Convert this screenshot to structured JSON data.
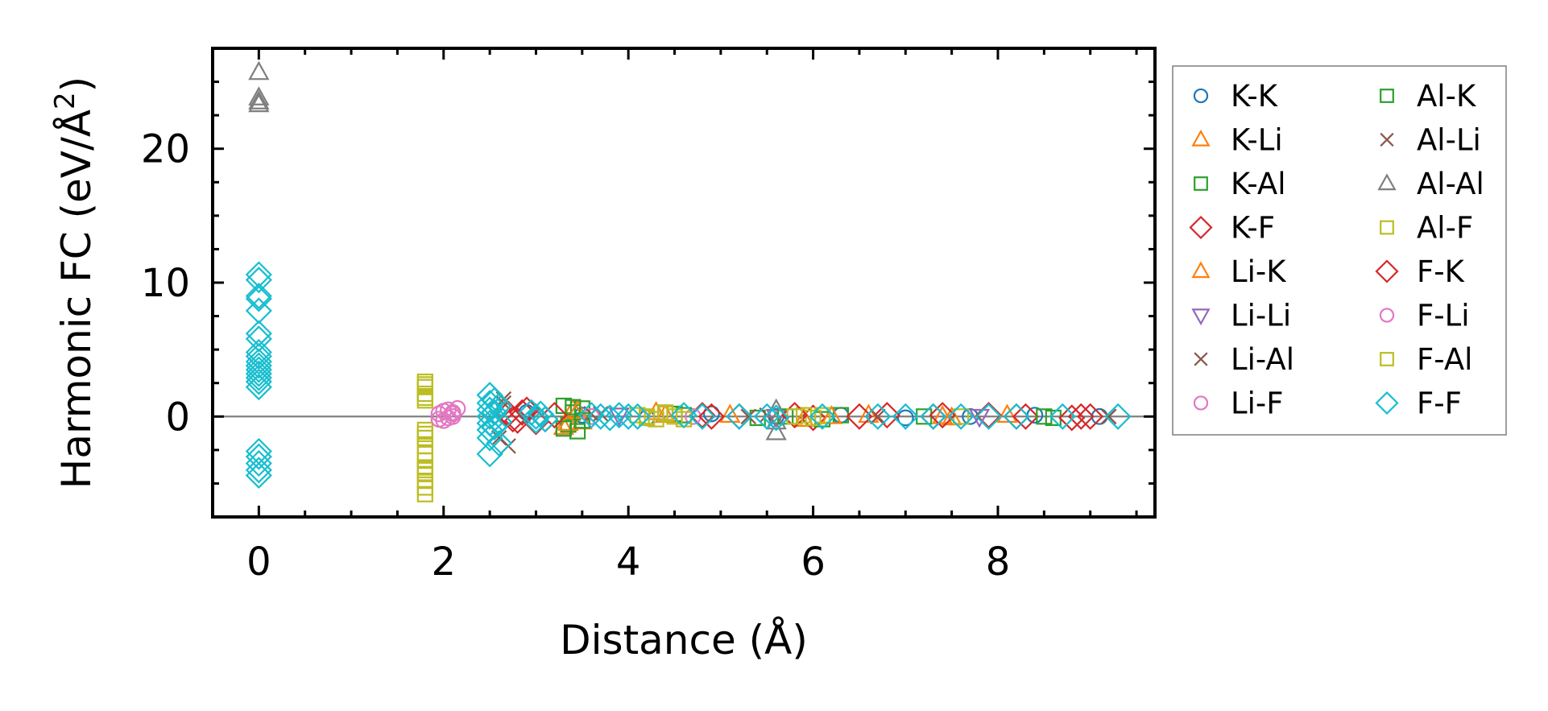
{
  "chart_data": {
    "type": "scatter",
    "xlabel": "Distance (Å)",
    "ylabel": "Harmonic FC (eV/Å²)",
    "ylabel_parts": {
      "main": "Harmonic FC (eV/Å",
      "superscript": "2",
      "close": ")"
    },
    "xlim": [
      -0.5,
      9.7
    ],
    "ylim": [
      -7.5,
      27.5
    ],
    "x_ticks": [
      0,
      2,
      4,
      6,
      8
    ],
    "x_tick_labels": [
      "0",
      "2",
      "4",
      "6",
      "8"
    ],
    "y_ticks": [
      0,
      10,
      20
    ],
    "y_tick_labels": [
      "0",
      "10",
      "20"
    ],
    "reference_line": {
      "y": 0,
      "color": "#808080"
    },
    "grid": false,
    "legend": {
      "placement": "outside-right",
      "columns": 2
    },
    "series": [
      {
        "name": "K-K",
        "marker": "circle",
        "color": "#1f77b4",
        "x": [
          2.9,
          3.5,
          4.2,
          4.9,
          5.6,
          6.3,
          7.0,
          7.7,
          8.4,
          9.1
        ],
        "y": [
          0.3,
          0.1,
          -0.1,
          0.2,
          0.0,
          0.1,
          -0.1,
          0.0,
          0.1,
          0.0
        ]
      },
      {
        "name": "K-Li",
        "marker": "triangle-up",
        "color": "#ff7f0e",
        "x": [
          3.3,
          3.4,
          3.5,
          4.3,
          5.1,
          5.9,
          6.6,
          7.4,
          8.1
        ],
        "y": [
          -0.8,
          0.5,
          -0.4,
          0.3,
          0.1,
          -0.2,
          0.1,
          0.0,
          0.1
        ]
      },
      {
        "name": "K-Al",
        "marker": "square",
        "color": "#2ca02c",
        "x": [
          3.3,
          3.35,
          3.4,
          3.45,
          3.5,
          4.5,
          5.4,
          6.3,
          7.2,
          8.6
        ],
        "y": [
          0.8,
          -0.6,
          0.3,
          -1.1,
          0.6,
          0.2,
          -0.1,
          0.1,
          0.0,
          -0.1
        ]
      },
      {
        "name": "K-F",
        "marker": "diamond",
        "color": "#d62728",
        "x": [
          2.7,
          2.8,
          2.9,
          3.1,
          4.8,
          5.2,
          6.0,
          6.8,
          7.3,
          7.9,
          8.3,
          8.8,
          9.0
        ],
        "y": [
          0.2,
          -0.3,
          0.5,
          -0.2,
          0.1,
          0.0,
          -0.1,
          0.1,
          0.0,
          0.1,
          0.0,
          -0.1,
          0.0
        ]
      },
      {
        "name": "Li-K",
        "marker": "triangle-up",
        "color": "#ff7f0e",
        "x": [
          3.35,
          3.45,
          4.4,
          6.2,
          7.5
        ],
        "y": [
          -0.5,
          0.4,
          0.1,
          0.0,
          -0.1
        ]
      },
      {
        "name": "Li-Li",
        "marker": "triangle-down",
        "color": "#9467bd",
        "x": [
          3.9,
          5.6,
          7.8
        ],
        "y": [
          0.1,
          0.0,
          0.0
        ]
      },
      {
        "name": "Li-Al",
        "marker": "x",
        "color": "#8c564b",
        "x": [
          2.65,
          2.7,
          3.7,
          5.5,
          6.7,
          9.2
        ],
        "y": [
          1.3,
          -2.2,
          0.2,
          0.1,
          0.0,
          0.0
        ]
      },
      {
        "name": "Li-F",
        "marker": "circle",
        "color": "#e377c2",
        "x": [
          1.95,
          2.0,
          2.05,
          2.1,
          2.1,
          3.6,
          4.7
        ],
        "y": [
          0.2,
          -0.3,
          0.5,
          0.0,
          0.3,
          0.0,
          0.0
        ]
      },
      {
        "name": "Al-K",
        "marker": "square",
        "color": "#2ca02c",
        "x": [
          3.3,
          3.4,
          3.5,
          4.6,
          5.7,
          6.1,
          8.5
        ],
        "y": [
          -0.9,
          0.7,
          -0.3,
          0.1,
          0.0,
          -0.2,
          0.0
        ]
      },
      {
        "name": "Al-Li",
        "marker": "x",
        "color": "#8c564b",
        "x": [
          2.6,
          2.65,
          3.6,
          5.3,
          9.2
        ],
        "y": [
          -1.6,
          1.0,
          0.2,
          0.0,
          0.0
        ]
      },
      {
        "name": "Al-Al",
        "marker": "triangle-up",
        "color": "#7f7f7f",
        "x": [
          0.0,
          0.0,
          0.0,
          0.0,
          5.6,
          5.6,
          5.6
        ],
        "y": [
          25.7,
          23.8,
          23.5,
          23.3,
          0.5,
          -0.4,
          -1.2
        ]
      },
      {
        "name": "Al-F",
        "marker": "square",
        "color": "#bcbd22",
        "x": [
          1.8,
          1.8,
          1.8,
          1.8,
          1.8,
          1.8,
          1.8,
          1.8,
          1.8,
          1.8,
          1.8,
          1.8,
          1.8,
          1.8,
          4.2,
          4.3,
          4.4,
          4.5,
          5.9,
          6.0,
          7.6
        ],
        "y": [
          2.6,
          2.2,
          1.7,
          1.2,
          -1.0,
          -1.6,
          -2.2,
          -2.8,
          -3.3,
          -3.8,
          -4.3,
          -4.8,
          -5.3,
          -5.8,
          0.0,
          -0.2,
          0.3,
          0.0,
          0.1,
          -0.1,
          0.0
        ]
      },
      {
        "name": "F-K",
        "marker": "diamond",
        "color": "#d62728",
        "x": [
          2.75,
          2.85,
          3.0,
          3.2,
          4.9,
          5.8,
          6.5,
          7.4,
          8.2,
          8.9
        ],
        "y": [
          -0.2,
          0.3,
          -0.4,
          0.1,
          0.0,
          0.1,
          0.0,
          0.1,
          0.0,
          0.0
        ]
      },
      {
        "name": "F-Li",
        "marker": "circle",
        "color": "#e377c2",
        "x": [
          1.95,
          2.0,
          2.05,
          2.1,
          2.15
        ],
        "y": [
          -0.2,
          0.4,
          -0.1,
          0.2,
          0.6
        ]
      },
      {
        "name": "F-Al",
        "marker": "square",
        "color": "#bcbd22",
        "x": [
          1.8,
          1.8,
          1.8,
          1.8,
          4.1,
          4.2,
          4.4,
          4.6,
          5.8,
          6.1
        ],
        "y": [
          2.4,
          1.4,
          -1.3,
          -4.0,
          0.1,
          -0.1,
          0.2,
          -0.2,
          0.0,
          0.1
        ]
      },
      {
        "name": "F-F",
        "marker": "diamond",
        "color": "#17becf",
        "x": [
          0,
          0,
          0,
          0,
          0,
          0,
          0,
          0,
          0,
          0,
          0,
          0,
          0,
          0,
          0,
          0,
          0,
          0,
          0,
          0,
          0,
          2.5,
          2.5,
          2.5,
          2.5,
          2.5,
          2.5,
          2.5,
          2.5,
          2.55,
          2.55,
          2.55,
          2.6,
          2.6,
          2.6,
          2.95,
          3.0,
          3.0,
          3.05,
          3.1,
          3.6,
          3.7,
          3.8,
          3.9,
          4.0,
          4.1,
          4.6,
          4.8,
          5.2,
          5.5,
          5.6,
          6.1,
          6.7,
          7.0,
          7.3,
          7.6,
          7.9,
          8.2,
          8.7,
          9.3
        ],
        "y": [
          10.6,
          10.2,
          9.0,
          8.8,
          7.9,
          6.2,
          5.8,
          4.8,
          4.5,
          4.1,
          3.8,
          3.5,
          3.2,
          2.9,
          2.6,
          2.2,
          -2.6,
          -3.0,
          -3.5,
          -4.0,
          -4.4,
          1.6,
          1.0,
          0.5,
          0.0,
          -0.5,
          -1.0,
          -1.6,
          -2.8,
          1.2,
          0.3,
          -0.8,
          0.8,
          -0.4,
          -2.0,
          0.3,
          0.0,
          -0.3,
          0.2,
          -0.2,
          0.1,
          0.0,
          -0.1,
          0.1,
          0.0,
          0.0,
          0.1,
          0.0,
          0.0,
          0.0,
          -0.1,
          0.0,
          0.0,
          0.0,
          0.0,
          0.0,
          0.0,
          0.0,
          0.0,
          0.0
        ]
      }
    ]
  }
}
